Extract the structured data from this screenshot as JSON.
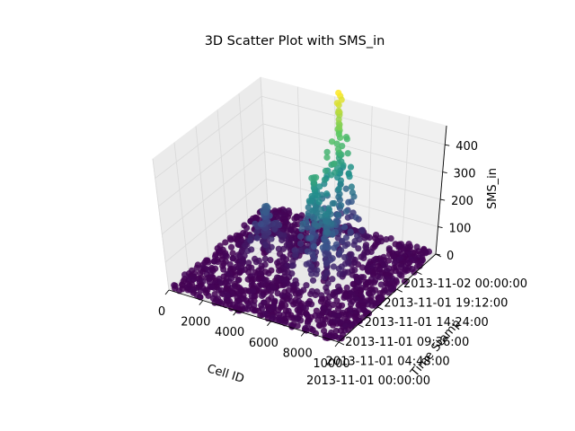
{
  "chart_data": {
    "type": "scatter",
    "projection": "3d",
    "title": "3D Scatter Plot with SMS_in",
    "xlabel": "Cell ID",
    "ylabel": "Time Stamp",
    "zlabel": "SMS_in",
    "x_ticks": [
      "0",
      "2000",
      "4000",
      "6000",
      "8000",
      "10000"
    ],
    "y_ticks": [
      "2013-11-01 00:00:00",
      "2013-11-01 04:48:00",
      "2013-11-01 09:36:00",
      "2013-11-01 14:24:00",
      "2013-11-01 19:12:00",
      "2013-11-02 00:00:00"
    ],
    "z_ticks": [
      "0",
      "100",
      "200",
      "300",
      "400"
    ],
    "xlim": [
      0,
      10000
    ],
    "ylim": [
      "2013-11-01 00:00:00",
      "2013-11-02 00:00:00"
    ],
    "zlim": [
      0,
      460
    ],
    "colormap": "viridis",
    "grid": true,
    "peaks": [
      {
        "x": 5700,
        "y": "2013-11-01 18:00:00",
        "z": 460
      },
      {
        "x": 5300,
        "y": "2013-11-01 13:30:00",
        "z": 270
      },
      {
        "x": 6400,
        "y": "2013-11-01 12:00:00",
        "z": 200
      },
      {
        "x": 2300,
        "y": "2013-11-01 14:00:00",
        "z": 140
      }
    ],
    "colors": {
      "low": "#440154",
      "mid": "#21918c",
      "high": "#fde725"
    }
  }
}
